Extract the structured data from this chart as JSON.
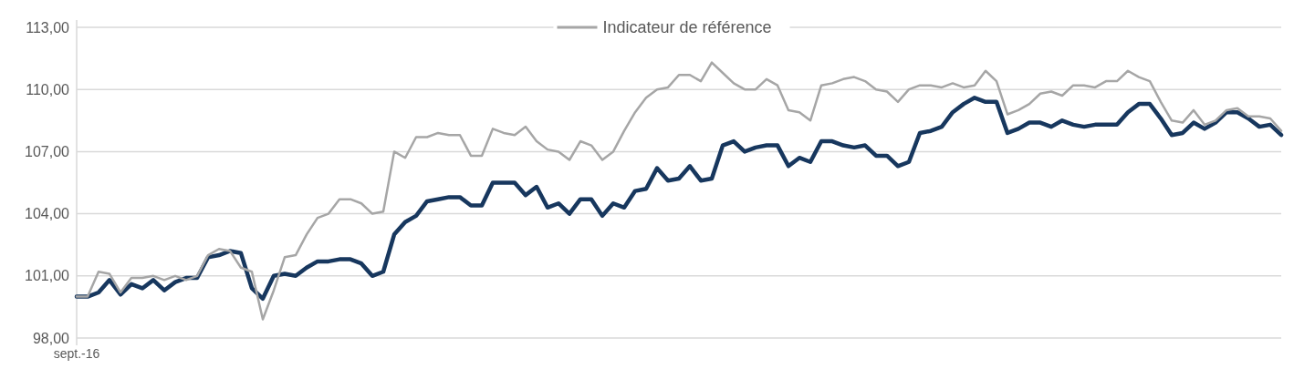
{
  "chart_data": {
    "type": "line",
    "categories": [
      "sept.-16",
      null,
      null,
      null,
      null,
      null,
      null,
      null,
      null,
      null,
      null,
      null,
      null,
      null,
      null,
      null,
      null,
      null,
      null,
      null,
      null,
      null,
      null,
      null,
      null,
      null,
      null,
      null,
      null,
      null,
      null,
      null,
      null,
      null,
      null,
      null,
      null,
      null,
      null,
      null,
      null,
      null,
      null,
      null,
      null,
      null,
      null,
      null,
      null,
      null,
      null,
      null,
      null,
      null,
      null,
      null,
      null,
      null,
      null,
      null,
      null,
      null,
      null,
      null,
      null,
      null,
      null,
      null,
      null,
      null,
      null,
      null,
      null,
      null,
      null,
      null,
      null,
      null,
      null,
      null,
      null,
      null,
      null,
      null,
      null,
      null,
      null,
      null,
      null,
      null,
      null,
      null,
      null,
      null,
      null,
      null,
      null,
      null,
      null,
      null,
      null,
      null,
      null,
      null,
      null,
      null,
      null,
      null,
      null,
      null,
      null
    ],
    "series": [
      {
        "color": "#17375e",
        "values": [
          100.0,
          100.0,
          100.2,
          100.8,
          100.1,
          100.6,
          100.4,
          100.8,
          100.3,
          100.7,
          100.9,
          100.9,
          101.9,
          102.0,
          102.2,
          102.1,
          100.4,
          99.9,
          101.0,
          101.1,
          101.0,
          101.4,
          101.7,
          101.7,
          101.8,
          101.8,
          101.6,
          101.0,
          101.2,
          103.0,
          103.6,
          103.9,
          104.6,
          104.7,
          104.8,
          104.8,
          104.4,
          104.4,
          105.5,
          105.5,
          105.5,
          104.9,
          105.3,
          104.3,
          104.5,
          104.0,
          104.7,
          104.7,
          103.9,
          104.5,
          104.3,
          105.1,
          105.2,
          106.2,
          105.6,
          105.7,
          106.3,
          105.6,
          105.7,
          107.3,
          107.5,
          107.0,
          107.2,
          107.3,
          107.3,
          106.3,
          106.7,
          106.5,
          107.5,
          107.5,
          107.3,
          107.2,
          107.3,
          106.8,
          106.8,
          106.3,
          106.5,
          107.9,
          108.0,
          108.2,
          108.9,
          109.3,
          109.6,
          109.4,
          109.4,
          107.9,
          108.1,
          108.4,
          108.4,
          108.2,
          108.5,
          108.3,
          108.2,
          108.3,
          108.3,
          108.3,
          108.9,
          109.3,
          109.3,
          108.6,
          107.8,
          107.9,
          108.4,
          108.1,
          108.4,
          108.9,
          108.9,
          108.6,
          108.2,
          108.3,
          107.8
        ]
      },
      {
        "name": "Indicateur de référence",
        "color": "#a6a6a6",
        "values": [
          100.0,
          100.0,
          101.2,
          101.1,
          100.2,
          100.9,
          100.9,
          101.0,
          100.8,
          101.0,
          100.8,
          101.0,
          102.0,
          102.3,
          102.2,
          101.4,
          101.2,
          98.9,
          100.3,
          101.9,
          102.0,
          103.0,
          103.8,
          104.0,
          104.7,
          104.7,
          104.5,
          104.0,
          104.1,
          107.0,
          106.7,
          107.7,
          107.7,
          107.9,
          107.8,
          107.8,
          106.8,
          106.8,
          108.1,
          107.9,
          107.8,
          108.2,
          107.5,
          107.1,
          107.0,
          106.6,
          107.5,
          107.3,
          106.6,
          107.0,
          108.0,
          108.9,
          109.6,
          110.0,
          110.1,
          110.7,
          110.7,
          110.4,
          111.3,
          110.8,
          110.3,
          110.0,
          110.0,
          110.5,
          110.2,
          109.0,
          108.9,
          108.5,
          110.2,
          110.3,
          110.5,
          110.6,
          110.4,
          110.0,
          109.9,
          109.4,
          110.0,
          110.2,
          110.2,
          110.1,
          110.3,
          110.1,
          110.2,
          110.9,
          110.4,
          108.8,
          109.0,
          109.3,
          109.8,
          109.9,
          109.7,
          110.2,
          110.2,
          110.1,
          110.4,
          110.4,
          110.9,
          110.6,
          110.4,
          109.4,
          108.5,
          108.4,
          109.0,
          108.3,
          108.5,
          109.0,
          109.1,
          108.7,
          108.7,
          108.6,
          108.0
        ]
      }
    ],
    "ylim": [
      98,
      113
    ],
    "yticks": [
      {
        "value": 98,
        "label": "98,00"
      },
      {
        "value": 101,
        "label": "101,00"
      },
      {
        "value": 104,
        "label": "104,00"
      },
      {
        "value": 107,
        "label": "107,00"
      },
      {
        "value": 110,
        "label": "110,00"
      },
      {
        "value": 113,
        "label": "113,00"
      }
    ],
    "grid": "y",
    "legend": "top",
    "marker": "none",
    "line_style": "solid"
  }
}
